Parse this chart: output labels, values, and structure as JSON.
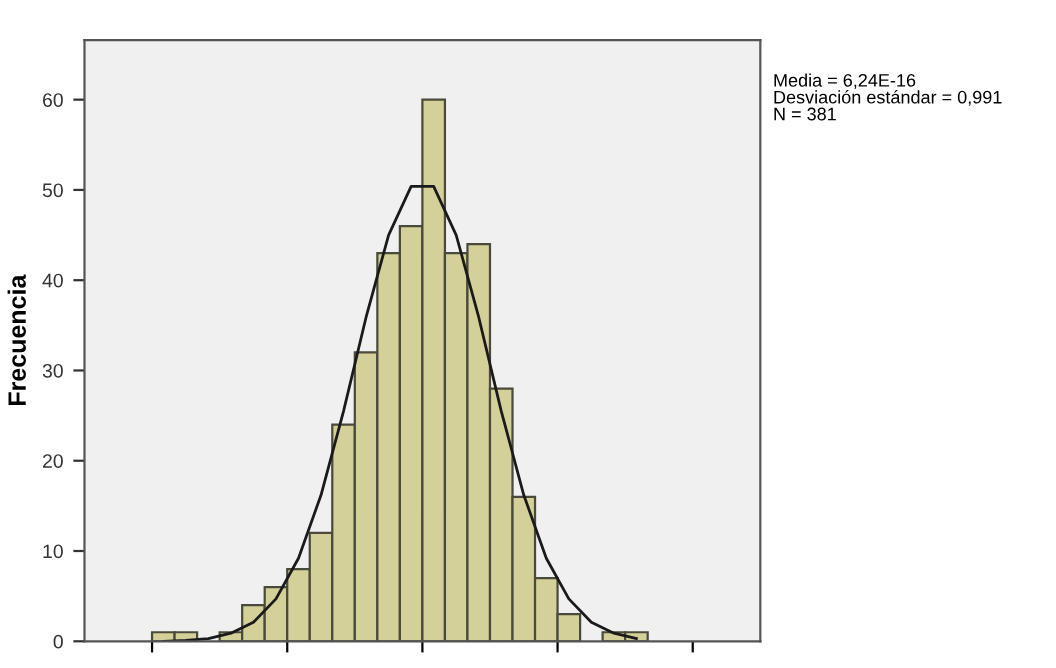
{
  "chart_data": {
    "type": "bar",
    "ylabel": "Frecuencia",
    "annotations": [
      "Media = 6,24E-16\nDesviación estándar = 0,991\nN = 381"
    ],
    "categories": [
      null,
      null,
      null,
      null,
      null,
      null,
      null,
      null,
      null,
      null,
      null,
      null,
      null,
      null,
      null,
      null,
      null,
      null,
      null,
      null,
      null,
      null
    ],
    "ylim": [
      0,
      66.6
    ],
    "yticks": [
      0,
      10,
      20,
      30,
      40,
      50,
      60
    ],
    "tick_labels": "y",
    "series": [
      {
        "color": "#d4d09a",
        "values": [
          1,
          1,
          0,
          1,
          4,
          6,
          8,
          12,
          24,
          32,
          43,
          46,
          60,
          43,
          44,
          28,
          16,
          7,
          3,
          0,
          1,
          1
        ]
      },
      {
        "type": "line",
        "color": "#1a1a1a",
        "values": [
          0,
          0.1,
          0.3,
          0.9,
          2.1,
          4.7,
          9.2,
          16.2,
          25.5,
          35.9,
          45,
          50.4,
          50.4,
          45,
          35.9,
          25.5,
          16.2,
          9.2,
          4.7,
          2.1,
          0.9,
          0.3
        ]
      }
    ]
  }
}
